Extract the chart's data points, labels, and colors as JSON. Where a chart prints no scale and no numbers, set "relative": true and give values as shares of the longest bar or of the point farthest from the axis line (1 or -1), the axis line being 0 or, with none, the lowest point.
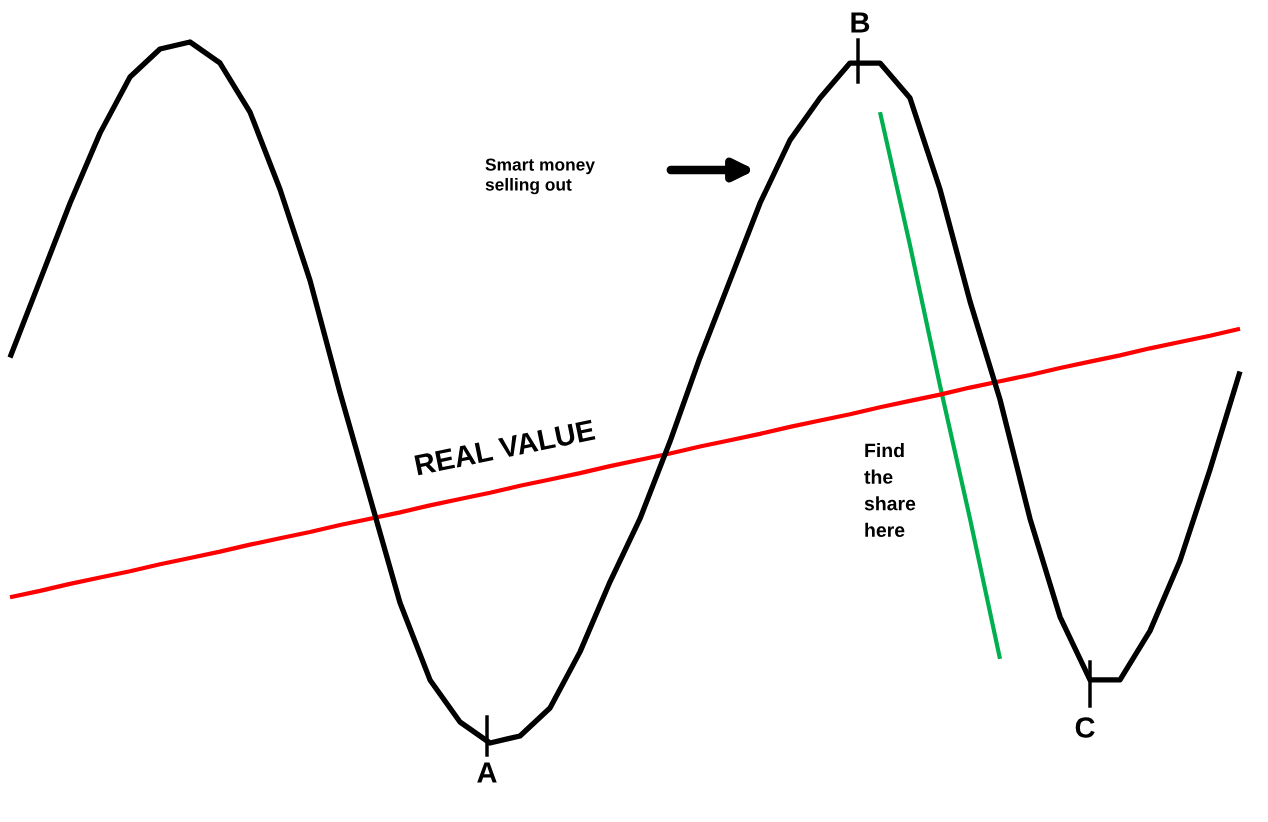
{
  "chart_data": {
    "type": "line",
    "relative": true,
    "tick_labels": false,
    "legend": false,
    "marker": "none",
    "line_style": "solid",
    "categories": [
      null,
      null,
      null,
      null,
      null,
      null,
      null,
      null,
      null,
      null,
      null,
      null,
      null,
      null,
      null,
      null,
      null,
      null,
      null,
      null,
      null,
      null,
      null,
      null,
      null,
      null,
      null,
      null,
      null,
      null,
      null,
      null,
      null,
      null,
      null,
      null,
      null,
      null,
      null,
      null,
      null,
      null
    ],
    "series": [
      {
        "color": "#000000",
        "values": [
          0.55,
          0.66,
          0.77,
          0.87,
          0.95,
          0.99,
          1.0,
          0.97,
          0.9,
          0.79,
          0.66,
          0.5,
          0.35,
          0.2,
          0.09,
          0.03,
          0.0,
          0.01,
          0.05,
          0.13,
          0.23,
          0.32,
          0.43,
          0.55,
          0.66,
          0.77,
          0.86,
          0.92,
          0.97,
          0.97,
          0.92,
          0.79,
          0.63,
          0.49,
          0.32,
          0.18,
          0.09,
          0.09,
          0.16,
          0.26,
          0.39,
          0.53
        ]
      },
      {
        "color": "#ff0000",
        "values": [
          0.208,
          0.217,
          0.227,
          0.236,
          0.245,
          0.255,
          0.264,
          0.273,
          0.283,
          0.292,
          0.301,
          0.311,
          0.32,
          0.329,
          0.339,
          0.348,
          0.357,
          0.367,
          0.376,
          0.385,
          0.395,
          0.404,
          0.413,
          0.423,
          0.432,
          0.441,
          0.451,
          0.46,
          0.469,
          0.479,
          0.488,
          0.497,
          0.507,
          0.516,
          0.525,
          0.535,
          0.544,
          0.553,
          0.563,
          0.572,
          0.581,
          0.591
        ]
      },
      {
        "color": "#00b050",
        "values": [
          null,
          null,
          null,
          null,
          null,
          null,
          null,
          null,
          null,
          null,
          null,
          null,
          null,
          null,
          null,
          null,
          null,
          null,
          null,
          null,
          null,
          null,
          null,
          null,
          null,
          null,
          null,
          null,
          null,
          0.9,
          0.71,
          0.51,
          0.32,
          0.12,
          null,
          null,
          null,
          null,
          null,
          null,
          null,
          null
        ]
      }
    ],
    "annotations": [
      "REAL VALUE",
      "Smart money\nselling out",
      "Find\nthe\nshare\nhere",
      "A",
      "B",
      "C"
    ]
  }
}
